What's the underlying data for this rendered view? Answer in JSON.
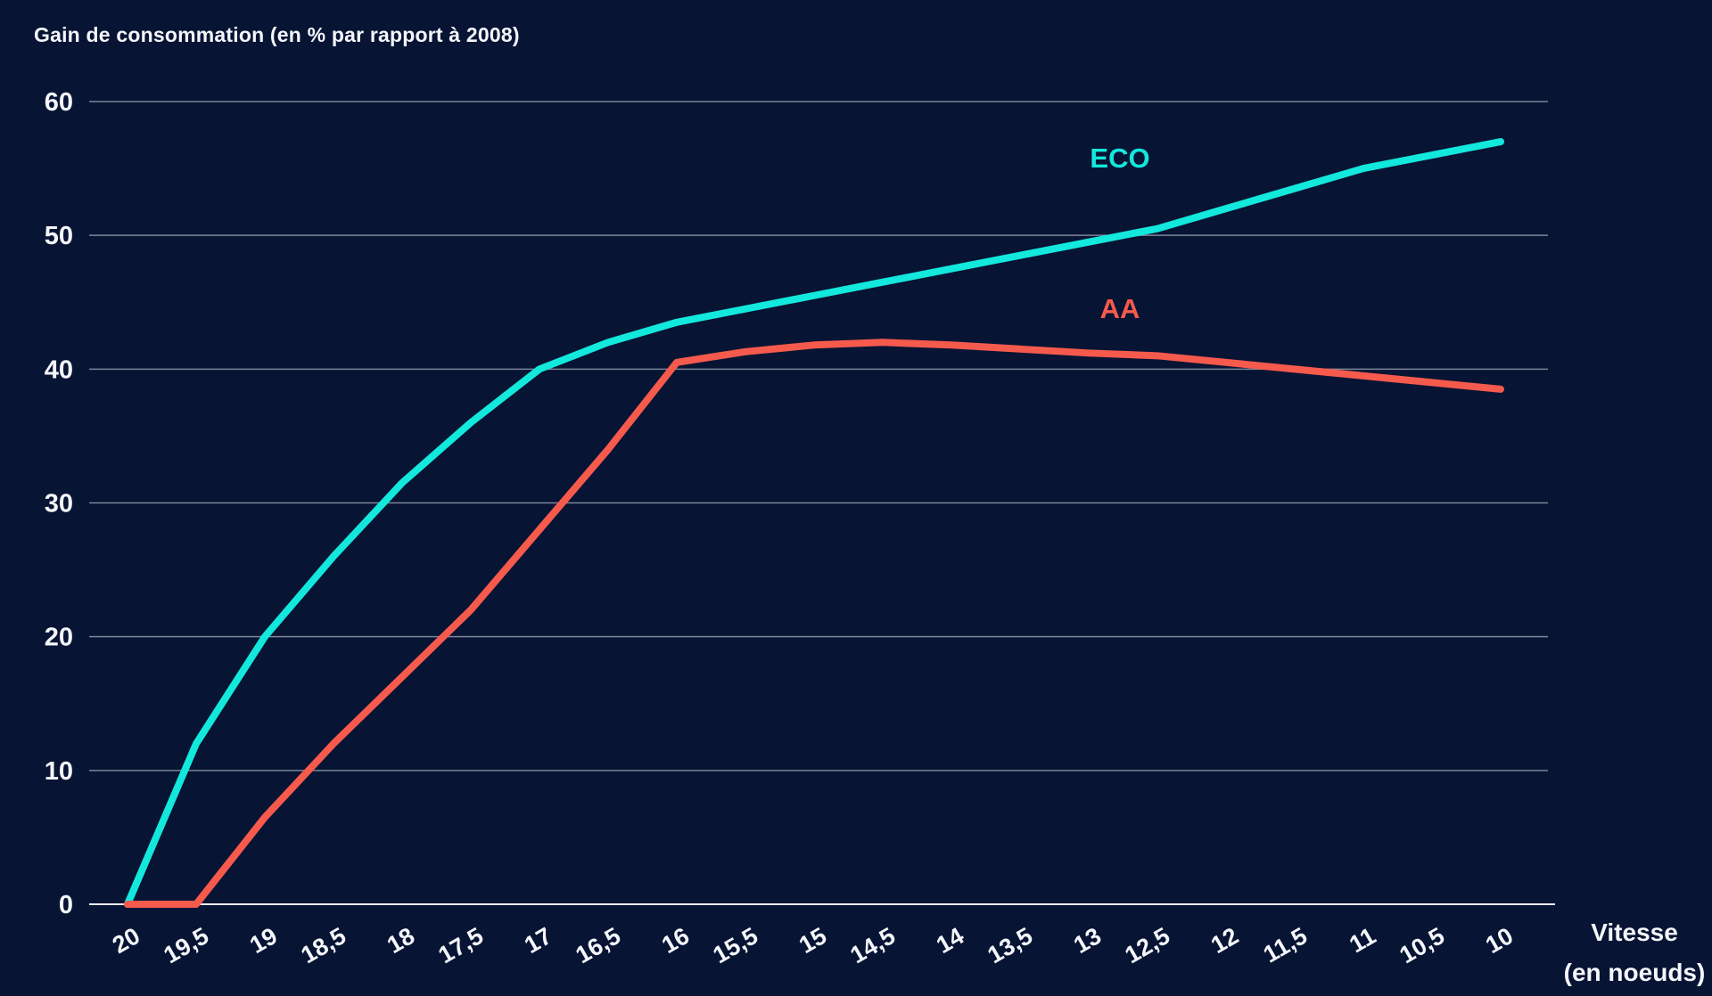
{
  "page": {
    "background_color": "#071434",
    "text_color": "#f4f6fa",
    "gridline_color": "#7e8498",
    "axis_line_color": "#e9ecf2"
  },
  "chart_data": {
    "type": "line",
    "title": "Gain de consommation (en % par rapport à 2008)",
    "xlabel": "Vitesse (en noeuds)",
    "xlabel_line1": "Vitesse",
    "xlabel_line2": "(en noeuds)",
    "ylabel": "",
    "categories": [
      "20",
      "19,5",
      "19",
      "18,5",
      "18",
      "17,5",
      "17",
      "16,5",
      "16",
      "15,5",
      "15",
      "14,5",
      "14",
      "13,5",
      "13",
      "12,5",
      "12",
      "11,5",
      "11",
      "10,5",
      "10"
    ],
    "series": [
      {
        "name": "ECO",
        "color": "#13e8dc",
        "values": [
          0,
          12,
          20,
          26,
          31.5,
          36,
          40,
          42,
          43.5,
          44.5,
          45.5,
          46.5,
          47.5,
          48.5,
          49.5,
          50.5,
          52,
          53.5,
          55,
          56,
          57
        ]
      },
      {
        "name": "AA",
        "color": "#f65a4d",
        "values": [
          0,
          0,
          6.5,
          12,
          17,
          22,
          28,
          34,
          40.5,
          41.3,
          41.8,
          42,
          41.8,
          41.5,
          41.2,
          41,
          40.5,
          40,
          39.5,
          39,
          38.5
        ]
      }
    ],
    "ylim": [
      0,
      60
    ],
    "yticks": [
      0,
      10,
      20,
      30,
      40,
      50,
      60
    ],
    "grid": "horizontal",
    "legend_position": "inline-labels",
    "x_tick_rotation_deg": -30
  }
}
